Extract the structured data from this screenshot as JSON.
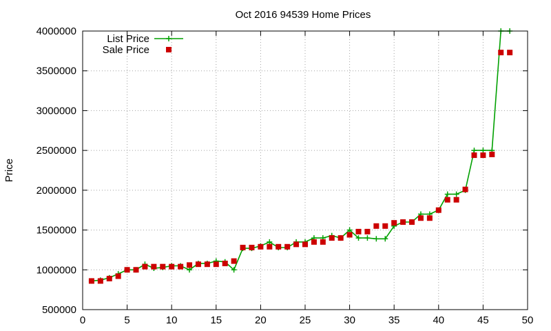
{
  "chart_data": {
    "type": "line",
    "title": "Oct 2016 94539 Home Prices",
    "xlabel": "",
    "ylabel": "Price",
    "xlim": [
      0,
      50
    ],
    "ylim": [
      500000,
      4000000
    ],
    "xticks": [
      "0",
      "5",
      "10",
      "15",
      "20",
      "25",
      "30",
      "35",
      "40",
      "45",
      "50"
    ],
    "yticks": [
      "500000",
      "1000000",
      "1500000",
      "2000000",
      "2500000",
      "3000000",
      "3500000",
      "4000000"
    ],
    "grid": true,
    "legend_position": "top-left",
    "x": [
      1,
      2,
      3,
      4,
      5,
      6,
      7,
      8,
      9,
      10,
      11,
      12,
      13,
      14,
      15,
      16,
      17,
      18,
      19,
      20,
      21,
      22,
      23,
      24,
      25,
      26,
      27,
      28,
      29,
      30,
      31,
      32,
      33,
      34,
      35,
      36,
      37,
      38,
      39,
      40,
      41,
      42,
      43,
      44,
      45,
      46,
      47,
      48
    ],
    "series": [
      {
        "name": "List Price",
        "style": "line+plus",
        "color": "#00a000",
        "values": [
          860000,
          870000,
          900000,
          950000,
          1000000,
          1000000,
          1070000,
          1020000,
          1030000,
          1050000,
          1050000,
          1000000,
          1080000,
          1080000,
          1110000,
          1100000,
          1000000,
          1270000,
          1270000,
          1300000,
          1350000,
          1280000,
          1280000,
          1350000,
          1350000,
          1400000,
          1400000,
          1430000,
          1400000,
          1500000,
          1400000,
          1400000,
          1390000,
          1390000,
          1550000,
          1600000,
          1600000,
          1700000,
          1700000,
          1750000,
          1950000,
          1950000,
          2000000,
          2500000,
          2500000,
          2500000,
          4000000,
          4000000
        ]
      },
      {
        "name": "Sale Price",
        "style": "square",
        "color": "#cc0000",
        "values": [
          860000,
          860000,
          890000,
          920000,
          1000000,
          1000000,
          1040000,
          1040000,
          1040000,
          1040000,
          1040000,
          1060000,
          1070000,
          1070000,
          1070000,
          1080000,
          1110000,
          1280000,
          1280000,
          1290000,
          1290000,
          1290000,
          1290000,
          1320000,
          1320000,
          1350000,
          1350000,
          1400000,
          1400000,
          1440000,
          1480000,
          1480000,
          1550000,
          1550000,
          1590000,
          1600000,
          1600000,
          1650000,
          1650000,
          1750000,
          1880000,
          1880000,
          2010000,
          2440000,
          2440000,
          2450000,
          3730000,
          3730000
        ]
      }
    ]
  }
}
